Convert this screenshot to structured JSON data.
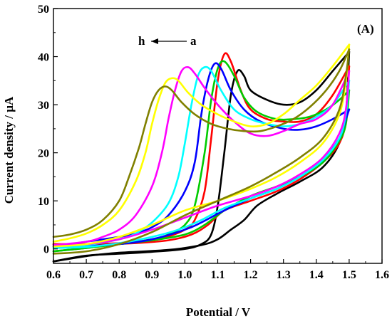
{
  "chart_data": {
    "type": "line",
    "panel_label": "(A)",
    "xlabel": "Potential / V",
    "ylabel": "Current density / µA",
    "xlim": [
      0.6,
      1.6
    ],
    "ylim": [
      -3,
      50
    ],
    "xticks": [
      0.6,
      0.7,
      0.8,
      0.9,
      1.0,
      1.1,
      1.2,
      1.3,
      1.4,
      1.5,
      1.6
    ],
    "xtick_labels": [
      "0.6",
      "0.7",
      "0.8",
      "0.9",
      "1.0",
      "1.1",
      "1.2",
      "1.3",
      "1.4",
      "1.5",
      "1.6"
    ],
    "yticks": [
      0,
      10,
      20,
      30,
      40,
      50
    ],
    "ytick_labels": [
      "0",
      "10",
      "20",
      "30",
      "40",
      "50"
    ],
    "annotation": {
      "from": "h",
      "to": "a"
    },
    "grid": false,
    "series": [
      {
        "color": "#000000",
        "forward": [
          [
            0.6,
            -2.6
          ],
          [
            0.7,
            -1.4
          ],
          [
            0.8,
            -1.0
          ],
          [
            0.9,
            -0.6
          ],
          [
            1.0,
            0.0
          ],
          [
            1.05,
            1.0
          ],
          [
            1.08,
            3.0
          ],
          [
            1.1,
            9.0
          ],
          [
            1.12,
            20.0
          ],
          [
            1.14,
            32.0
          ],
          [
            1.16,
            37.0
          ],
          [
            1.18,
            36.0
          ],
          [
            1.2,
            33.0
          ],
          [
            1.25,
            31.0
          ],
          [
            1.3,
            30.0
          ],
          [
            1.35,
            30.5
          ],
          [
            1.4,
            33.0
          ],
          [
            1.45,
            37.0
          ],
          [
            1.5,
            41.0
          ]
        ],
        "reverse": [
          [
            1.5,
            41.0
          ],
          [
            1.49,
            28.0
          ],
          [
            1.47,
            22.0
          ],
          [
            1.42,
            17.0
          ],
          [
            1.35,
            14.0
          ],
          [
            1.28,
            11.5
          ],
          [
            1.22,
            9.0
          ],
          [
            1.18,
            6.0
          ],
          [
            1.14,
            4.0
          ],
          [
            1.1,
            2.0
          ],
          [
            1.05,
            0.8
          ],
          [
            0.95,
            -0.2
          ],
          [
            0.8,
            -0.8
          ],
          [
            0.7,
            -1.5
          ],
          [
            0.6,
            -2.6
          ]
        ]
      },
      {
        "color": "#ff0000",
        "forward": [
          [
            0.6,
            1.0
          ],
          [
            0.7,
            1.0
          ],
          [
            0.8,
            1.2
          ],
          [
            0.9,
            1.8
          ],
          [
            0.95,
            2.6
          ],
          [
            1.0,
            4.0
          ],
          [
            1.03,
            6.0
          ],
          [
            1.06,
            12.0
          ],
          [
            1.08,
            23.0
          ],
          [
            1.1,
            35.0
          ],
          [
            1.12,
            40.5
          ],
          [
            1.14,
            39.0
          ],
          [
            1.17,
            33.0
          ],
          [
            1.2,
            29.0
          ],
          [
            1.25,
            27.0
          ],
          [
            1.3,
            26.5
          ],
          [
            1.35,
            26.5
          ],
          [
            1.4,
            28.0
          ],
          [
            1.45,
            32.0
          ],
          [
            1.5,
            38.0
          ]
        ],
        "reverse": [
          [
            1.5,
            38.0
          ],
          [
            1.49,
            27.0
          ],
          [
            1.47,
            22.0
          ],
          [
            1.42,
            18.0
          ],
          [
            1.35,
            14.5
          ],
          [
            1.28,
            12.0
          ],
          [
            1.2,
            10.0
          ],
          [
            1.12,
            8.0
          ],
          [
            1.07,
            5.0
          ],
          [
            1.02,
            3.0
          ],
          [
            0.95,
            1.8
          ],
          [
            0.85,
            1.2
          ],
          [
            0.75,
            1.0
          ],
          [
            0.6,
            1.0
          ]
        ]
      },
      {
        "color": "#00cc00",
        "forward": [
          [
            0.6,
            -0.5
          ],
          [
            0.7,
            0.2
          ],
          [
            0.8,
            1.0
          ],
          [
            0.9,
            2.0
          ],
          [
            0.95,
            3.0
          ],
          [
            1.0,
            5.0
          ],
          [
            1.03,
            9.0
          ],
          [
            1.06,
            20.0
          ],
          [
            1.08,
            31.0
          ],
          [
            1.1,
            37.5
          ],
          [
            1.12,
            39.0
          ],
          [
            1.15,
            36.0
          ],
          [
            1.18,
            31.5
          ],
          [
            1.22,
            28.5
          ],
          [
            1.28,
            27.0
          ],
          [
            1.33,
            27.0
          ],
          [
            1.38,
            27.5
          ],
          [
            1.43,
            29.0
          ],
          [
            1.47,
            31.0
          ],
          [
            1.5,
            33.0
          ]
        ],
        "reverse": [
          [
            1.5,
            33.0
          ],
          [
            1.49,
            26.0
          ],
          [
            1.47,
            22.5
          ],
          [
            1.42,
            18.0
          ],
          [
            1.35,
            15.0
          ],
          [
            1.28,
            13.0
          ],
          [
            1.2,
            11.0
          ],
          [
            1.12,
            8.0
          ],
          [
            1.06,
            5.0
          ],
          [
            1.0,
            3.0
          ],
          [
            0.9,
            1.8
          ],
          [
            0.8,
            1.0
          ],
          [
            0.7,
            0.2
          ],
          [
            0.6,
            -0.5
          ]
        ]
      },
      {
        "color": "#0000ff",
        "forward": [
          [
            0.6,
            0.5
          ],
          [
            0.7,
            1.5
          ],
          [
            0.8,
            2.5
          ],
          [
            0.85,
            3.2
          ],
          [
            0.9,
            4.5
          ],
          [
            0.95,
            7.0
          ],
          [
            1.0,
            12.0
          ],
          [
            1.03,
            18.0
          ],
          [
            1.05,
            28.0
          ],
          [
            1.07,
            35.0
          ],
          [
            1.09,
            38.5
          ],
          [
            1.11,
            37.5
          ],
          [
            1.14,
            33.0
          ],
          [
            1.18,
            29.0
          ],
          [
            1.23,
            26.5
          ],
          [
            1.3,
            25.0
          ],
          [
            1.35,
            24.8
          ],
          [
            1.4,
            25.5
          ],
          [
            1.45,
            27.0
          ],
          [
            1.5,
            29.0
          ]
        ],
        "reverse": [
          [
            1.5,
            29.0
          ],
          [
            1.49,
            27.0
          ],
          [
            1.47,
            23.0
          ],
          [
            1.42,
            18.5
          ],
          [
            1.35,
            15.0
          ],
          [
            1.28,
            12.5
          ],
          [
            1.2,
            10.5
          ],
          [
            1.12,
            8.0
          ],
          [
            1.05,
            5.5
          ],
          [
            1.0,
            4.0
          ],
          [
            0.9,
            2.0
          ],
          [
            0.8,
            1.0
          ],
          [
            0.7,
            0.6
          ],
          [
            0.6,
            0.5
          ]
        ]
      },
      {
        "color": "#00ffff",
        "forward": [
          [
            0.6,
            0.2
          ],
          [
            0.7,
            0.8
          ],
          [
            0.8,
            2.0
          ],
          [
            0.85,
            3.2
          ],
          [
            0.9,
            5.5
          ],
          [
            0.95,
            9.5
          ],
          [
            0.98,
            15.0
          ],
          [
            1.0,
            22.0
          ],
          [
            1.02,
            30.0
          ],
          [
            1.04,
            36.0
          ],
          [
            1.06,
            37.8
          ],
          [
            1.08,
            37.0
          ],
          [
            1.11,
            33.0
          ],
          [
            1.15,
            29.0
          ],
          [
            1.2,
            27.0
          ],
          [
            1.25,
            26.0
          ],
          [
            1.3,
            25.5
          ],
          [
            1.35,
            26.0
          ],
          [
            1.4,
            27.5
          ],
          [
            1.45,
            30.0
          ],
          [
            1.5,
            35.0
          ]
        ],
        "reverse": [
          [
            1.5,
            35.0
          ],
          [
            1.49,
            28.0
          ],
          [
            1.47,
            23.0
          ],
          [
            1.42,
            18.5
          ],
          [
            1.35,
            15.0
          ],
          [
            1.28,
            12.5
          ],
          [
            1.2,
            10.5
          ],
          [
            1.12,
            8.5
          ],
          [
            1.05,
            6.0
          ],
          [
            0.98,
            4.0
          ],
          [
            0.9,
            2.5
          ],
          [
            0.8,
            1.2
          ],
          [
            0.7,
            0.4
          ],
          [
            0.6,
            0.2
          ]
        ]
      },
      {
        "color": "#ff00ff",
        "forward": [
          [
            0.6,
            0.8
          ],
          [
            0.7,
            1.5
          ],
          [
            0.75,
            2.5
          ],
          [
            0.8,
            4.0
          ],
          [
            0.85,
            7.0
          ],
          [
            0.9,
            13.0
          ],
          [
            0.93,
            20.0
          ],
          [
            0.95,
            27.0
          ],
          [
            0.97,
            33.0
          ],
          [
            0.99,
            37.0
          ],
          [
            1.01,
            37.8
          ],
          [
            1.03,
            36.5
          ],
          [
            1.06,
            33.5
          ],
          [
            1.1,
            30.0
          ],
          [
            1.15,
            26.5
          ],
          [
            1.2,
            24.0
          ],
          [
            1.25,
            23.5
          ],
          [
            1.3,
            24.5
          ],
          [
            1.35,
            26.0
          ],
          [
            1.4,
            27.0
          ],
          [
            1.45,
            30.0
          ],
          [
            1.5,
            37.0
          ]
        ],
        "reverse": [
          [
            1.5,
            37.0
          ],
          [
            1.49,
            29.0
          ],
          [
            1.47,
            24.0
          ],
          [
            1.42,
            19.0
          ],
          [
            1.35,
            15.5
          ],
          [
            1.28,
            13.0
          ],
          [
            1.2,
            11.0
          ],
          [
            1.1,
            9.0
          ],
          [
            1.0,
            6.5
          ],
          [
            0.9,
            4.0
          ],
          [
            0.8,
            2.0
          ],
          [
            0.7,
            1.0
          ],
          [
            0.6,
            0.8
          ]
        ]
      },
      {
        "color": "#ffff00",
        "forward": [
          [
            0.6,
            1.5
          ],
          [
            0.65,
            2.2
          ],
          [
            0.7,
            3.2
          ],
          [
            0.75,
            5.0
          ],
          [
            0.8,
            8.0
          ],
          [
            0.85,
            14.0
          ],
          [
            0.88,
            20.0
          ],
          [
            0.9,
            26.0
          ],
          [
            0.92,
            31.0
          ],
          [
            0.94,
            34.5
          ],
          [
            0.96,
            35.5
          ],
          [
            0.98,
            35.0
          ],
          [
            1.01,
            32.5
          ],
          [
            1.05,
            30.0
          ],
          [
            1.1,
            28.0
          ],
          [
            1.15,
            26.5
          ],
          [
            1.2,
            25.5
          ],
          [
            1.25,
            26.0
          ],
          [
            1.3,
            28.0
          ],
          [
            1.35,
            31.0
          ],
          [
            1.4,
            34.0
          ],
          [
            1.45,
            38.0
          ],
          [
            1.5,
            42.5
          ]
        ],
        "reverse": [
          [
            1.5,
            42.5
          ],
          [
            1.49,
            35.0
          ],
          [
            1.47,
            28.0
          ],
          [
            1.42,
            22.0
          ],
          [
            1.35,
            18.0
          ],
          [
            1.28,
            15.0
          ],
          [
            1.2,
            12.5
          ],
          [
            1.1,
            10.0
          ],
          [
            1.0,
            8.0
          ],
          [
            0.9,
            5.0
          ],
          [
            0.8,
            2.5
          ],
          [
            0.7,
            1.0
          ],
          [
            0.6,
            0.5
          ]
        ]
      },
      {
        "color": "#808000",
        "forward": [
          [
            0.6,
            2.5
          ],
          [
            0.65,
            3.0
          ],
          [
            0.7,
            4.0
          ],
          [
            0.75,
            6.0
          ],
          [
            0.8,
            10.0
          ],
          [
            0.83,
            15.0
          ],
          [
            0.86,
            21.0
          ],
          [
            0.88,
            26.0
          ],
          [
            0.9,
            30.5
          ],
          [
            0.92,
            33.0
          ],
          [
            0.94,
            33.8
          ],
          [
            0.96,
            33.0
          ],
          [
            0.99,
            30.5
          ],
          [
            1.03,
            28.0
          ],
          [
            1.08,
            26.0
          ],
          [
            1.13,
            25.0
          ],
          [
            1.18,
            24.5
          ],
          [
            1.23,
            24.5
          ],
          [
            1.28,
            25.5
          ],
          [
            1.33,
            27.0
          ],
          [
            1.38,
            29.5
          ],
          [
            1.43,
            33.0
          ],
          [
            1.47,
            37.0
          ],
          [
            1.5,
            41.5
          ]
        ],
        "reverse": [
          [
            1.5,
            41.5
          ],
          [
            1.49,
            36.0
          ],
          [
            1.47,
            29.0
          ],
          [
            1.42,
            23.0
          ],
          [
            1.35,
            19.0
          ],
          [
            1.28,
            16.0
          ],
          [
            1.2,
            13.0
          ],
          [
            1.1,
            10.0
          ],
          [
            1.0,
            7.0
          ],
          [
            0.9,
            3.5
          ],
          [
            0.8,
            1.0
          ],
          [
            0.7,
            -0.5
          ],
          [
            0.6,
            -1.0
          ]
        ]
      }
    ]
  }
}
